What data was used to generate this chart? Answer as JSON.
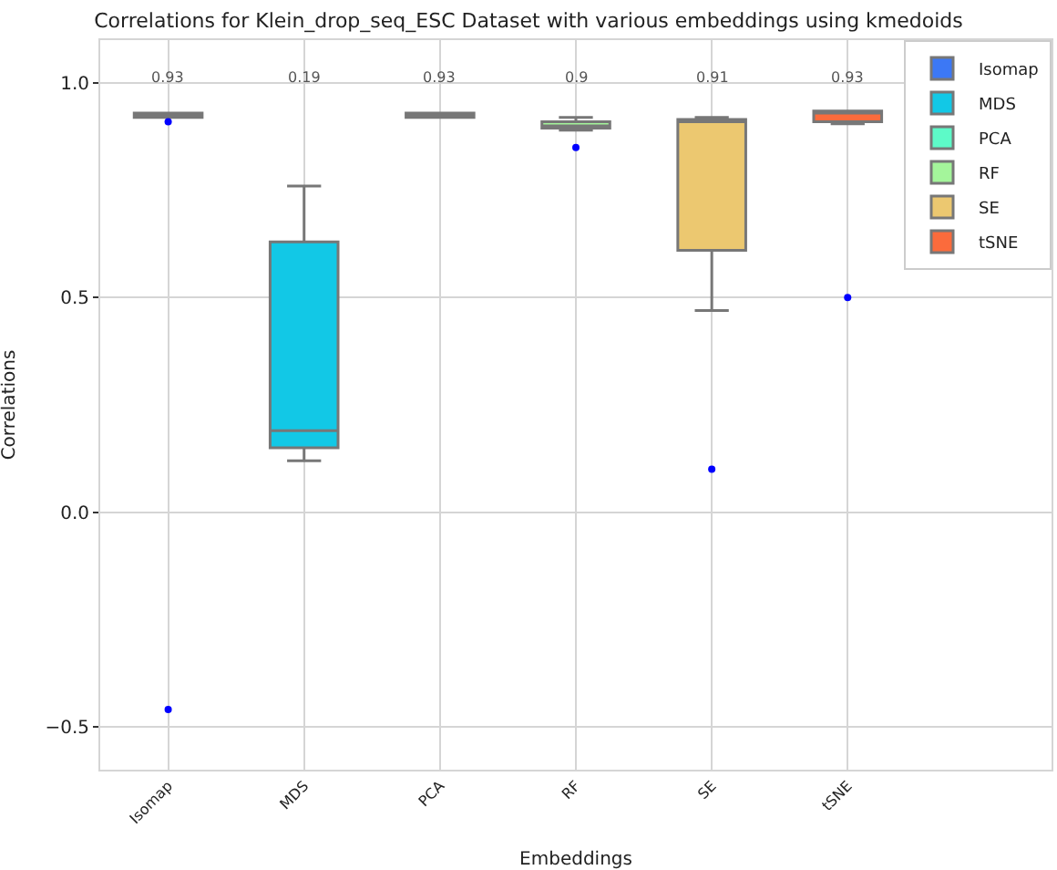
{
  "chart_data": {
    "type": "box",
    "title": "Correlations for Klein_drop_seq_ESC Dataset with various embeddings using kmedoids",
    "xlabel": "Embeddings",
    "ylabel": "Correlations",
    "categories": [
      "Isomap",
      "MDS",
      "PCA",
      "RF",
      "SE",
      "tSNE"
    ],
    "series": [
      {
        "name": "Isomap",
        "color": "#3c78f5",
        "boxes": [
          {
            "low": 0.92,
            "q1": 0.92,
            "median": 0.925,
            "q3": 0.93,
            "high": 0.93,
            "outliers": [
              0.91,
              -0.46
            ]
          },
          null,
          null,
          null,
          null,
          null
        ]
      },
      {
        "name": "MDS",
        "color": "#12c8e6",
        "boxes": [
          null,
          {
            "low": 0.12,
            "q1": 0.15,
            "median": 0.19,
            "q3": 0.63,
            "high": 0.76
          },
          null,
          null,
          null,
          null
        ]
      },
      {
        "name": "PCA",
        "color": "#5dfac8",
        "boxes": [
          null,
          null,
          {
            "low": 0.92,
            "q1": 0.92,
            "median": 0.925,
            "q3": 0.93,
            "high": 0.93
          },
          null,
          null,
          null
        ]
      },
      {
        "name": "RF",
        "color": "#a4f59b",
        "boxes": [
          null,
          null,
          null,
          {
            "low": 0.89,
            "q1": 0.895,
            "median": 0.9,
            "q3": 0.91,
            "high": 0.92,
            "outliers": [
              0.85
            ]
          },
          null,
          null
        ]
      },
      {
        "name": "SE",
        "color": "#ecc870",
        "boxes": [
          null,
          null,
          null,
          null,
          {
            "low": 0.47,
            "q1": 0.61,
            "median": 0.91,
            "q3": 0.915,
            "high": 0.92,
            "outliers": [
              0.1
            ]
          },
          null
        ]
      },
      {
        "name": "tSNE",
        "color": "#fb6b3c",
        "boxes": [
          null,
          null,
          null,
          null,
          null,
          {
            "low": 0.905,
            "q1": 0.91,
            "median": 0.93,
            "q3": 0.935,
            "high": 0.935,
            "outliers": [
              0.5
            ]
          }
        ]
      }
    ],
    "annotations": [
      "0.93",
      "0.19",
      "0.93",
      "0.9",
      "0.91",
      "0.93"
    ],
    "ylim": [
      -0.6,
      1.1
    ],
    "yticks": [
      {
        "value": -0.5,
        "label": "−0.5"
      },
      {
        "value": 0,
        "label": "0.0"
      },
      {
        "value": 0.5,
        "label": "0.5"
      },
      {
        "value": 1,
        "label": "1.0"
      }
    ],
    "grid": true,
    "legend": "top right"
  }
}
